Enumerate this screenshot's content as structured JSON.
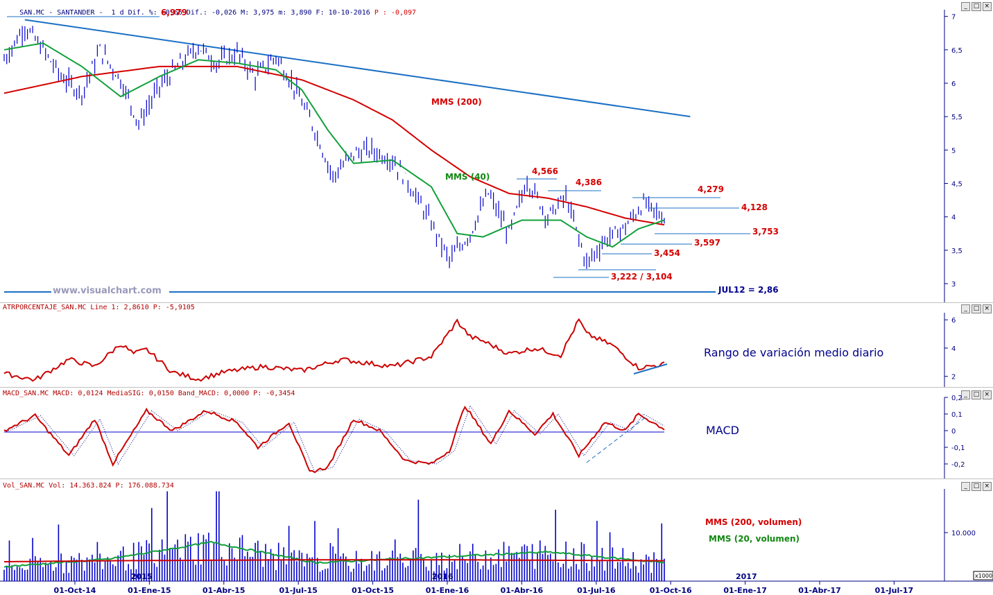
{
  "header_main": "SAN.MC - SANTANDER -  1 d Dif. %: -0,66 Dif.: -0,026 M: 3,975 m: 3,890 F: 10-10-2016",
  "header_main_p": " P : -0,097",
  "header_atr": "ATRPORCENTAJE_SAN.MC Line 1: 2,8610 P: -5,9105",
  "header_macd": "MACD_SAN.MC MACD: 0,0124 MediaSIG: 0,0150 Band_MACD: 0,0000 P: -0,3454",
  "header_vol": "Vol_SAN.MC Vol: 14.363.824 P: 176.088.734",
  "watermark": "www.visualchart.com",
  "win_buttons": [
    "_",
    "□",
    "×"
  ],
  "annotations": {
    "hi": "6,979",
    "mms200": "MMS (200)",
    "mms40": "MMS (40)",
    "l4566": "4,566",
    "l4386": "4,386",
    "l4279": "4,279",
    "l4128": "4,128",
    "l3753": "3,753",
    "l3597": "3,597",
    "l3454": "3,454",
    "l3222": "3,222 / 3,104",
    "jul12": "JUL12 = 2,86",
    "atr_text": "Rango de variación medio diario",
    "macd_text": "MACD",
    "vol200": "MMS (200, volumen)",
    "vol20": "MMS (20, volumen)",
    "yr2015": "2015",
    "yr2016": "2016",
    "yr2017": "2017",
    "x10000": "x10000"
  },
  "colors": {
    "price": "#0000cc",
    "mms200": "#d40000",
    "mms40": "#11a03a",
    "trend": "#1a6fc4",
    "axis": "#000080"
  },
  "chart_data": [
    {
      "type": "line",
      "title": "SAN.MC - SANTANDER",
      "x_ticks": [
        "01-Oct-14",
        "01-Ene-15",
        "01-Abr-15",
        "01-Jul-15",
        "01-Oct-15",
        "01-Ene-16",
        "01-Abr-16",
        "01-Jul-16",
        "01-Oct-16",
        "01-Ene-17",
        "01-Abr-17",
        "01-Jul-17"
      ],
      "y_ticks": [
        "7",
        "6,5",
        "6",
        "5,5",
        "5",
        "4,5",
        "4",
        "3,5",
        "3"
      ],
      "y_tick_values": [
        7,
        6.5,
        6,
        5.5,
        5,
        4.5,
        4,
        3.5,
        3
      ],
      "ylim": [
        2.72,
        7.1
      ],
      "series": [
        {
          "name": "SAN.MC",
          "x": [
            0,
            8,
            15,
            22,
            30,
            37,
            45,
            52,
            60,
            67,
            75,
            82,
            90,
            97,
            105,
            112,
            120,
            127,
            135,
            142,
            150,
            157,
            165,
            172,
            180,
            187,
            195,
            202,
            210,
            217,
            225,
            232,
            240,
            247,
            255
          ],
          "values": [
            6.35,
            6.85,
            6.5,
            6.1,
            5.85,
            6.5,
            6.05,
            5.4,
            5.95,
            6.25,
            6.55,
            6.3,
            6.45,
            6.1,
            6.4,
            5.95,
            5.3,
            4.6,
            4.95,
            5.0,
            4.85,
            4.45,
            3.9,
            3.35,
            3.75,
            4.35,
            3.75,
            4.55,
            4.0,
            4.3,
            3.3,
            3.65,
            3.85,
            4.2,
            3.98
          ]
        },
        {
          "name": "MMS (200)",
          "x": [
            0,
            30,
            60,
            90,
            115,
            135,
            150,
            165,
            180,
            195,
            210,
            225,
            240,
            255
          ],
          "values": [
            5.85,
            6.1,
            6.25,
            6.25,
            6.05,
            5.75,
            5.45,
            5.0,
            4.6,
            4.35,
            4.28,
            4.15,
            3.98,
            3.88
          ]
        },
        {
          "name": "MMS (40)",
          "x": [
            0,
            15,
            30,
            45,
            60,
            75,
            90,
            105,
            115,
            125,
            135,
            150,
            165,
            175,
            185,
            200,
            215,
            225,
            235,
            245,
            255
          ],
          "values": [
            6.5,
            6.6,
            6.25,
            5.8,
            6.1,
            6.35,
            6.3,
            6.2,
            5.9,
            5.3,
            4.8,
            4.85,
            4.45,
            3.75,
            3.7,
            3.95,
            3.95,
            3.7,
            3.55,
            3.82,
            3.95
          ]
        },
        {
          "name": "Tendencia",
          "x": [
            8,
            265
          ],
          "values": [
            6.95,
            5.5
          ]
        }
      ]
    },
    {
      "type": "line",
      "title": "ATRPORCENTAJE_SAN.MC",
      "y_ticks": [
        "6",
        "4",
        "2"
      ],
      "y_tick_values": [
        6,
        4,
        2
      ],
      "ylim": [
        1.2,
        6.5
      ],
      "series": [
        {
          "name": "Line 1",
          "x": [
            0,
            12,
            25,
            35,
            45,
            50,
            55,
            65,
            75,
            85,
            100,
            115,
            130,
            150,
            165,
            175,
            180,
            185,
            195,
            205,
            215,
            222,
            225,
            235,
            245,
            255
          ],
          "values": [
            2.2,
            1.75,
            3.2,
            2.7,
            4.3,
            3.6,
            3.9,
            2.3,
            1.8,
            2.3,
            2.7,
            2.4,
            3.2,
            2.7,
            3.4,
            5.9,
            4.8,
            4.5,
            3.6,
            4.0,
            3.5,
            6.0,
            5.0,
            4.2,
            2.6,
            2.86
          ]
        }
      ]
    },
    {
      "type": "line",
      "title": "MACD_SAN.MC",
      "y_ticks": [
        "0,2",
        "0,1",
        "0",
        "-0,1",
        "-0,2",
        "-0,3"
      ],
      "y_tick_values": [
        0.2,
        0.1,
        0,
        -0.1,
        -0.2,
        -0.3
      ],
      "ylim": [
        -0.3,
        0.2
      ],
      "series": [
        {
          "name": "MACD",
          "x": [
            0,
            12,
            25,
            35,
            42,
            55,
            65,
            78,
            90,
            98,
            110,
            118,
            125,
            135,
            145,
            155,
            165,
            172,
            178,
            188,
            195,
            205,
            212,
            222,
            232,
            240,
            245,
            255
          ],
          "values": [
            0.0,
            0.09,
            -0.15,
            0.07,
            -0.2,
            0.12,
            0.0,
            0.12,
            0.05,
            -0.1,
            0.05,
            -0.25,
            -0.22,
            0.07,
            0.0,
            -0.18,
            -0.2,
            -0.12,
            0.15,
            -0.08,
            0.12,
            -0.02,
            0.1,
            -0.15,
            0.05,
            0.0,
            0.1,
            0.01
          ]
        }
      ]
    },
    {
      "type": "bar",
      "title": "Vol_SAN.MC",
      "y_ticks": [
        "10.000"
      ],
      "y_tick_values": [
        1000
      ],
      "ylim": [
        0,
        1900
      ],
      "series": [
        {
          "name": "MMS (200, volumen)",
          "values": [
            400,
            420,
            430,
            440,
            440,
            430,
            420
          ]
        },
        {
          "name": "MMS (20, volumen)",
          "values": [
            300,
            450,
            800,
            380,
            500,
            600,
            380
          ]
        }
      ]
    }
  ]
}
